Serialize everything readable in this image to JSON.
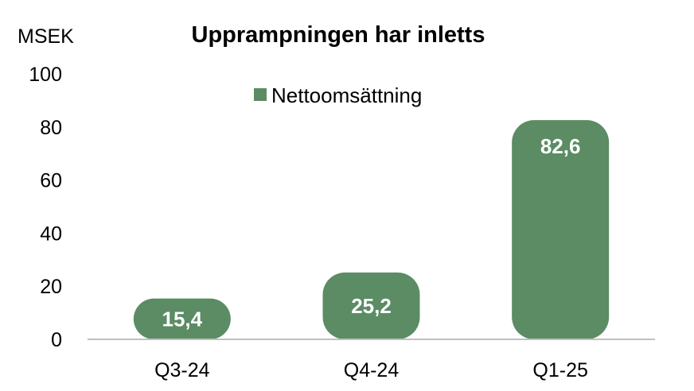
{
  "chart_data": {
    "type": "bar",
    "title": "Upprampningen har inletts",
    "ylabel": "MSEK",
    "categories": [
      "Q3-24",
      "Q4-24",
      "Q1-25"
    ],
    "series": [
      {
        "name": "Nettoomsättning",
        "values": [
          15.4,
          25.2,
          82.6
        ]
      }
    ],
    "data_labels": [
      "15,4",
      "25,2",
      "82,6"
    ],
    "ylim": [
      0,
      100
    ],
    "yticks": [
      0,
      20,
      40,
      60,
      80,
      100
    ],
    "grid": false,
    "legend": "top-center",
    "colors": {
      "bar": "#5b8c64",
      "axis": "#bfbfbf"
    }
  }
}
